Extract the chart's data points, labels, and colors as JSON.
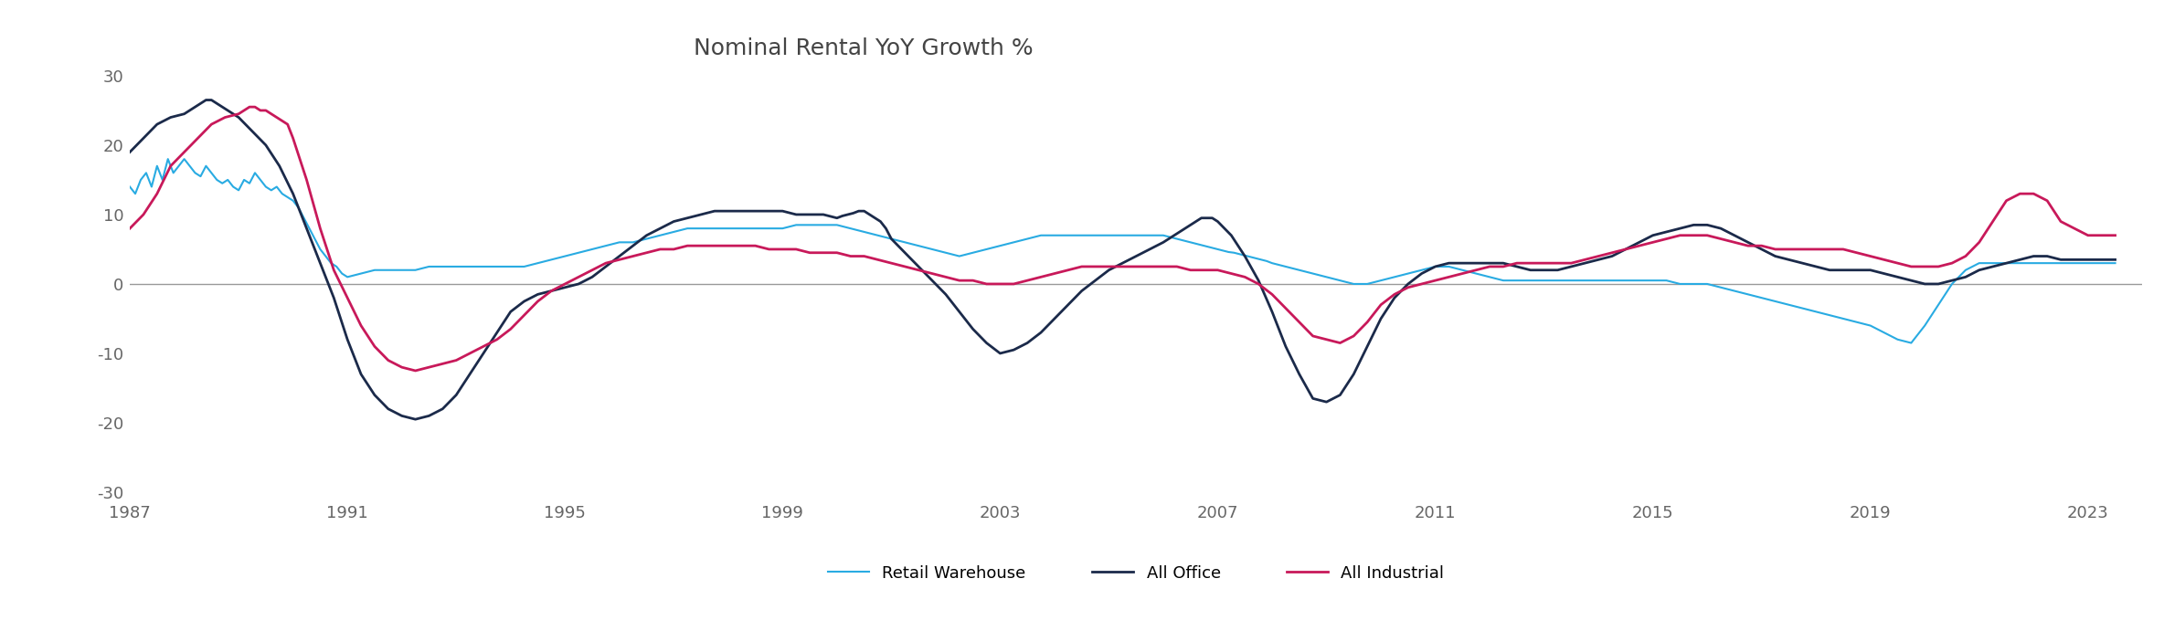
{
  "title": "Nominal Rental YoY Growth %",
  "xlim": [
    1987,
    2024
  ],
  "ylim": [
    -30,
    30
  ],
  "yticks": [
    -30,
    -20,
    -10,
    0,
    10,
    20,
    30
  ],
  "xticks": [
    1987,
    1991,
    1995,
    1999,
    2003,
    2007,
    2011,
    2015,
    2019,
    2023
  ],
  "background_color": "#ffffff",
  "zero_line_color": "#999999",
  "colors": {
    "retail_warehouse": "#29ABE2",
    "all_office": "#1B2A4A",
    "all_industrial": "#C8195A"
  },
  "linewidths": {
    "retail_warehouse": 1.5,
    "all_office": 2.0,
    "all_industrial": 2.0
  },
  "legend_labels": [
    "Retail Warehouse",
    "All Office",
    "All Industrial"
  ],
  "retail_warehouse": {
    "x": [
      1987.0,
      1987.1,
      1987.2,
      1987.3,
      1987.4,
      1987.5,
      1987.6,
      1987.7,
      1987.8,
      1987.9,
      1988.0,
      1988.1,
      1988.2,
      1988.3,
      1988.4,
      1988.5,
      1988.6,
      1988.7,
      1988.8,
      1988.9,
      1989.0,
      1989.1,
      1989.2,
      1989.3,
      1989.4,
      1989.5,
      1989.6,
      1989.7,
      1989.8,
      1989.9,
      1990.0,
      1990.1,
      1990.2,
      1990.3,
      1990.4,
      1990.5,
      1990.6,
      1990.7,
      1990.8,
      1990.9,
      1991.0,
      1991.25,
      1991.5,
      1991.75,
      1992.0,
      1992.25,
      1992.5,
      1992.75,
      1993.0,
      1993.25,
      1993.5,
      1993.75,
      1994.0,
      1994.25,
      1994.5,
      1994.75,
      1995.0,
      1995.25,
      1995.5,
      1995.75,
      1996.0,
      1996.25,
      1996.5,
      1996.75,
      1997.0,
      1997.25,
      1997.5,
      1997.75,
      1998.0,
      1998.25,
      1998.5,
      1998.75,
      1999.0,
      1999.25,
      1999.5,
      1999.75,
      2000.0,
      2000.25,
      2000.5,
      2000.75,
      2001.0,
      2001.25,
      2001.5,
      2001.75,
      2002.0,
      2002.25,
      2002.5,
      2002.75,
      2003.0,
      2003.25,
      2003.5,
      2003.75,
      2004.0,
      2004.25,
      2004.5,
      2004.75,
      2005.0,
      2005.25,
      2005.5,
      2005.75,
      2006.0,
      2006.25,
      2006.5,
      2006.75,
      2007.0,
      2007.1,
      2007.2,
      2007.3,
      2007.4,
      2007.5,
      2007.6,
      2007.7,
      2007.8,
      2007.9,
      2008.0,
      2008.25,
      2008.5,
      2008.75,
      2009.0,
      2009.25,
      2009.5,
      2009.75,
      2010.0,
      2010.25,
      2010.5,
      2010.75,
      2011.0,
      2011.25,
      2011.5,
      2011.75,
      2012.0,
      2012.25,
      2012.5,
      2012.75,
      2013.0,
      2013.25,
      2013.5,
      2013.75,
      2014.0,
      2014.25,
      2014.5,
      2014.75,
      2015.0,
      2015.25,
      2015.5,
      2015.75,
      2016.0,
      2016.25,
      2016.5,
      2016.75,
      2017.0,
      2017.25,
      2017.5,
      2017.75,
      2018.0,
      2018.25,
      2018.5,
      2018.75,
      2019.0,
      2019.25,
      2019.5,
      2019.75,
      2020.0,
      2020.25,
      2020.5,
      2020.75,
      2021.0,
      2021.25,
      2021.5,
      2021.75,
      2022.0,
      2022.25,
      2022.5,
      2022.75,
      2023.0,
      2023.25,
      2023.5
    ],
    "y": [
      14.0,
      13.0,
      15.0,
      16.0,
      14.0,
      17.0,
      15.0,
      18.0,
      16.0,
      17.0,
      18.0,
      17.0,
      16.0,
      15.5,
      17.0,
      16.0,
      15.0,
      14.5,
      15.0,
      14.0,
      13.5,
      15.0,
      14.5,
      16.0,
      15.0,
      14.0,
      13.5,
      14.0,
      13.0,
      12.5,
      12.0,
      11.0,
      9.5,
      8.0,
      6.5,
      5.0,
      4.0,
      3.0,
      2.5,
      1.5,
      1.0,
      1.5,
      2.0,
      2.0,
      2.0,
      2.0,
      2.5,
      2.5,
      2.5,
      2.5,
      2.5,
      2.5,
      2.5,
      2.5,
      3.0,
      3.5,
      4.0,
      4.5,
      5.0,
      5.5,
      6.0,
      6.0,
      6.5,
      7.0,
      7.5,
      8.0,
      8.0,
      8.0,
      8.0,
      8.0,
      8.0,
      8.0,
      8.0,
      8.5,
      8.5,
      8.5,
      8.5,
      8.0,
      7.5,
      7.0,
      6.5,
      6.0,
      5.5,
      5.0,
      4.5,
      4.0,
      4.5,
      5.0,
      5.5,
      6.0,
      6.5,
      7.0,
      7.0,
      7.0,
      7.0,
      7.0,
      7.0,
      7.0,
      7.0,
      7.0,
      7.0,
      6.5,
      6.0,
      5.5,
      5.0,
      4.8,
      4.6,
      4.5,
      4.3,
      4.1,
      3.9,
      3.7,
      3.5,
      3.3,
      3.0,
      2.5,
      2.0,
      1.5,
      1.0,
      0.5,
      0.0,
      0.0,
      0.5,
      1.0,
      1.5,
      2.0,
      2.5,
      2.5,
      2.0,
      1.5,
      1.0,
      0.5,
      0.5,
      0.5,
      0.5,
      0.5,
      0.5,
      0.5,
      0.5,
      0.5,
      0.5,
      0.5,
      0.5,
      0.5,
      0.0,
      0.0,
      0.0,
      -0.5,
      -1.0,
      -1.5,
      -2.0,
      -2.5,
      -3.0,
      -3.5,
      -4.0,
      -4.5,
      -5.0,
      -5.5,
      -6.0,
      -7.0,
      -8.0,
      -8.5,
      -6.0,
      -3.0,
      0.0,
      2.0,
      3.0,
      3.0,
      3.0,
      3.0,
      3.0,
      3.0,
      3.0,
      3.0,
      3.0,
      3.0,
      3.0
    ]
  },
  "all_office": {
    "x": [
      1987.0,
      1987.25,
      1987.5,
      1987.75,
      1988.0,
      1988.1,
      1988.2,
      1988.3,
      1988.4,
      1988.5,
      1988.6,
      1988.7,
      1988.8,
      1988.9,
      1989.0,
      1989.25,
      1989.5,
      1989.75,
      1990.0,
      1990.25,
      1990.5,
      1990.75,
      1991.0,
      1991.25,
      1991.5,
      1991.75,
      1992.0,
      1992.25,
      1992.5,
      1992.75,
      1993.0,
      1993.25,
      1993.5,
      1993.75,
      1994.0,
      1994.25,
      1994.5,
      1994.75,
      1995.0,
      1995.25,
      1995.5,
      1995.75,
      1996.0,
      1996.25,
      1996.5,
      1996.75,
      1997.0,
      1997.25,
      1997.5,
      1997.75,
      1998.0,
      1998.25,
      1998.5,
      1998.75,
      1999.0,
      1999.25,
      1999.5,
      1999.75,
      2000.0,
      2000.1,
      2000.2,
      2000.3,
      2000.4,
      2000.5,
      2000.6,
      2000.7,
      2000.8,
      2000.9,
      2001.0,
      2001.25,
      2001.5,
      2001.75,
      2002.0,
      2002.25,
      2002.5,
      2002.75,
      2003.0,
      2003.25,
      2003.5,
      2003.75,
      2004.0,
      2004.25,
      2004.5,
      2004.75,
      2005.0,
      2005.25,
      2005.5,
      2005.75,
      2006.0,
      2006.1,
      2006.2,
      2006.3,
      2006.4,
      2006.5,
      2006.6,
      2006.7,
      2006.8,
      2006.9,
      2007.0,
      2007.25,
      2007.5,
      2007.75,
      2008.0,
      2008.25,
      2008.5,
      2008.75,
      2009.0,
      2009.25,
      2009.5,
      2009.75,
      2010.0,
      2010.25,
      2010.5,
      2010.75,
      2011.0,
      2011.25,
      2011.5,
      2011.75,
      2012.0,
      2012.25,
      2012.5,
      2012.75,
      2013.0,
      2013.25,
      2013.5,
      2013.75,
      2014.0,
      2014.25,
      2014.5,
      2014.75,
      2015.0,
      2015.25,
      2015.5,
      2015.75,
      2016.0,
      2016.25,
      2016.5,
      2016.75,
      2017.0,
      2017.25,
      2017.5,
      2017.75,
      2018.0,
      2018.25,
      2018.5,
      2018.75,
      2019.0,
      2019.25,
      2019.5,
      2019.75,
      2020.0,
      2020.25,
      2020.5,
      2020.75,
      2021.0,
      2021.25,
      2021.5,
      2021.75,
      2022.0,
      2022.25,
      2022.5,
      2022.75,
      2023.0,
      2023.25,
      2023.5
    ],
    "y": [
      19.0,
      21.0,
      23.0,
      24.0,
      24.5,
      25.0,
      25.5,
      26.0,
      26.5,
      26.5,
      26.0,
      25.5,
      25.0,
      24.5,
      24.0,
      22.0,
      20.0,
      17.0,
      13.0,
      8.0,
      3.0,
      -2.0,
      -8.0,
      -13.0,
      -16.0,
      -18.0,
      -19.0,
      -19.5,
      -19.0,
      -18.0,
      -16.0,
      -13.0,
      -10.0,
      -7.0,
      -4.0,
      -2.5,
      -1.5,
      -1.0,
      -0.5,
      0.0,
      1.0,
      2.5,
      4.0,
      5.5,
      7.0,
      8.0,
      9.0,
      9.5,
      10.0,
      10.5,
      10.5,
      10.5,
      10.5,
      10.5,
      10.5,
      10.0,
      10.0,
      10.0,
      9.5,
      9.8,
      10.0,
      10.2,
      10.5,
      10.5,
      10.0,
      9.5,
      9.0,
      8.0,
      6.5,
      4.5,
      2.5,
      0.5,
      -1.5,
      -4.0,
      -6.5,
      -8.5,
      -10.0,
      -9.5,
      -8.5,
      -7.0,
      -5.0,
      -3.0,
      -1.0,
      0.5,
      2.0,
      3.0,
      4.0,
      5.0,
      6.0,
      6.5,
      7.0,
      7.5,
      8.0,
      8.5,
      9.0,
      9.5,
      9.5,
      9.5,
      9.0,
      7.0,
      4.0,
      0.5,
      -4.0,
      -9.0,
      -13.0,
      -16.5,
      -17.0,
      -16.0,
      -13.0,
      -9.0,
      -5.0,
      -2.0,
      0.0,
      1.5,
      2.5,
      3.0,
      3.0,
      3.0,
      3.0,
      3.0,
      2.5,
      2.0,
      2.0,
      2.0,
      2.5,
      3.0,
      3.5,
      4.0,
      5.0,
      6.0,
      7.0,
      7.5,
      8.0,
      8.5,
      8.5,
      8.0,
      7.0,
      6.0,
      5.0,
      4.0,
      3.5,
      3.0,
      2.5,
      2.0,
      2.0,
      2.0,
      2.0,
      1.5,
      1.0,
      0.5,
      0.0,
      0.0,
      0.5,
      1.0,
      2.0,
      2.5,
      3.0,
      3.5,
      4.0,
      4.0,
      3.5,
      3.5,
      3.5,
      3.5,
      3.5
    ]
  },
  "all_industrial": {
    "x": [
      1987.0,
      1987.25,
      1987.5,
      1987.75,
      1988.0,
      1988.25,
      1988.5,
      1988.75,
      1989.0,
      1989.1,
      1989.2,
      1989.3,
      1989.4,
      1989.5,
      1989.6,
      1989.7,
      1989.8,
      1989.9,
      1990.0,
      1990.25,
      1990.5,
      1990.75,
      1991.0,
      1991.25,
      1991.5,
      1991.75,
      1992.0,
      1992.25,
      1992.5,
      1992.75,
      1993.0,
      1993.25,
      1993.5,
      1993.75,
      1994.0,
      1994.25,
      1994.5,
      1994.75,
      1995.0,
      1995.25,
      1995.5,
      1995.75,
      1996.0,
      1996.25,
      1996.5,
      1996.75,
      1997.0,
      1997.25,
      1997.5,
      1997.75,
      1998.0,
      1998.25,
      1998.5,
      1998.75,
      1999.0,
      1999.25,
      1999.5,
      1999.75,
      2000.0,
      2000.25,
      2000.5,
      2000.75,
      2001.0,
      2001.25,
      2001.5,
      2001.75,
      2002.0,
      2002.25,
      2002.5,
      2002.75,
      2003.0,
      2003.25,
      2003.5,
      2003.75,
      2004.0,
      2004.25,
      2004.5,
      2004.75,
      2005.0,
      2005.25,
      2005.5,
      2005.75,
      2006.0,
      2006.25,
      2006.5,
      2006.75,
      2007.0,
      2007.25,
      2007.5,
      2007.75,
      2008.0,
      2008.25,
      2008.5,
      2008.75,
      2009.0,
      2009.25,
      2009.5,
      2009.75,
      2010.0,
      2010.25,
      2010.5,
      2010.75,
      2011.0,
      2011.25,
      2011.5,
      2011.75,
      2012.0,
      2012.25,
      2012.5,
      2012.75,
      2013.0,
      2013.25,
      2013.5,
      2013.75,
      2014.0,
      2014.25,
      2014.5,
      2014.75,
      2015.0,
      2015.25,
      2015.5,
      2015.75,
      2016.0,
      2016.25,
      2016.5,
      2016.75,
      2017.0,
      2017.25,
      2017.5,
      2017.75,
      2018.0,
      2018.25,
      2018.5,
      2018.75,
      2019.0,
      2019.25,
      2019.5,
      2019.75,
      2020.0,
      2020.25,
      2020.5,
      2020.75,
      2021.0,
      2021.25,
      2021.5,
      2021.75,
      2022.0,
      2022.25,
      2022.5,
      2022.75,
      2023.0,
      2023.25,
      2023.5
    ],
    "y": [
      8.0,
      10.0,
      13.0,
      17.0,
      19.0,
      21.0,
      23.0,
      24.0,
      24.5,
      25.0,
      25.5,
      25.5,
      25.0,
      25.0,
      24.5,
      24.0,
      23.5,
      23.0,
      21.0,
      15.0,
      8.0,
      2.0,
      -2.0,
      -6.0,
      -9.0,
      -11.0,
      -12.0,
      -12.5,
      -12.0,
      -11.5,
      -11.0,
      -10.0,
      -9.0,
      -8.0,
      -6.5,
      -4.5,
      -2.5,
      -1.0,
      0.0,
      1.0,
      2.0,
      3.0,
      3.5,
      4.0,
      4.5,
      5.0,
      5.0,
      5.5,
      5.5,
      5.5,
      5.5,
      5.5,
      5.5,
      5.0,
      5.0,
      5.0,
      4.5,
      4.5,
      4.5,
      4.0,
      4.0,
      3.5,
      3.0,
      2.5,
      2.0,
      1.5,
      1.0,
      0.5,
      0.5,
      0.0,
      0.0,
      0.0,
      0.5,
      1.0,
      1.5,
      2.0,
      2.5,
      2.5,
      2.5,
      2.5,
      2.5,
      2.5,
      2.5,
      2.5,
      2.0,
      2.0,
      2.0,
      1.5,
      1.0,
      0.0,
      -1.5,
      -3.5,
      -5.5,
      -7.5,
      -8.0,
      -8.5,
      -7.5,
      -5.5,
      -3.0,
      -1.5,
      -0.5,
      0.0,
      0.5,
      1.0,
      1.5,
      2.0,
      2.5,
      2.5,
      3.0,
      3.0,
      3.0,
      3.0,
      3.0,
      3.5,
      4.0,
      4.5,
      5.0,
      5.5,
      6.0,
      6.5,
      7.0,
      7.0,
      7.0,
      6.5,
      6.0,
      5.5,
      5.5,
      5.0,
      5.0,
      5.0,
      5.0,
      5.0,
      5.0,
      4.5,
      4.0,
      3.5,
      3.0,
      2.5,
      2.5,
      2.5,
      3.0,
      4.0,
      6.0,
      9.0,
      12.0,
      13.0,
      13.0,
      12.0,
      9.0,
      8.0,
      7.0,
      7.0,
      7.0
    ]
  }
}
